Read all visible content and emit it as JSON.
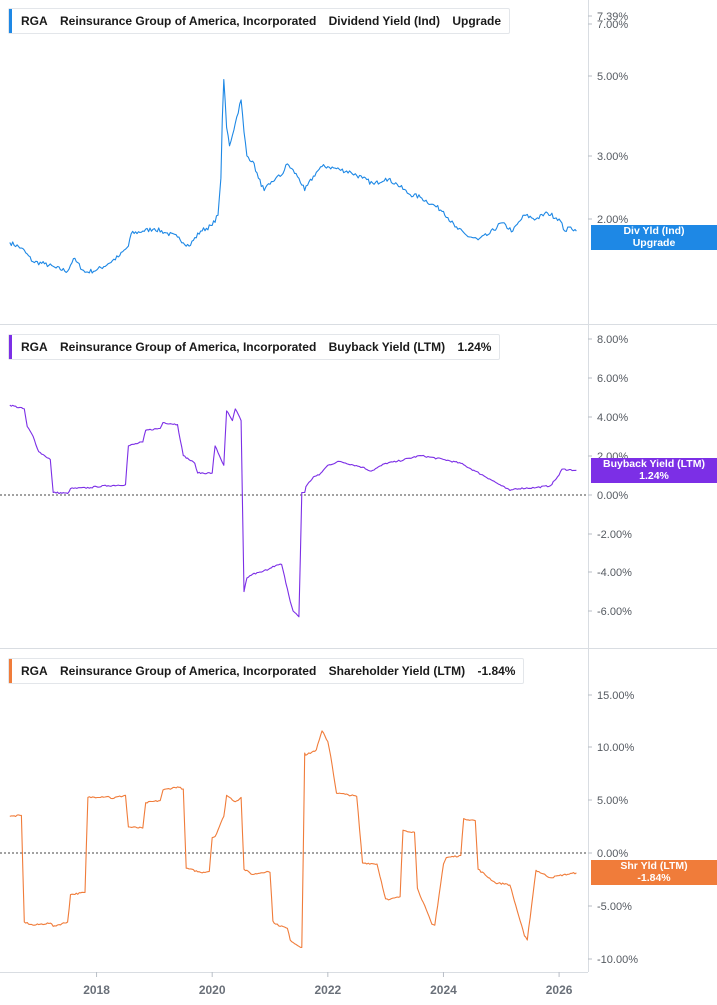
{
  "x_axis": {
    "ticks": [
      "2018",
      "2020",
      "2022",
      "2024",
      "2026"
    ]
  },
  "chart_data": [
    {
      "type": "line",
      "ticker": "RGA",
      "company": "Reinsurance Group of America, Incorporated",
      "metric": "Dividend Yield (Ind)",
      "current_value": "Upgrade",
      "tag_line1": "Div Yld (Ind)",
      "tag_line2": "Upgrade",
      "color": "#1e88e5",
      "scale": "log",
      "y_ticks": [
        "7.39%",
        "7.00%",
        "5.00%",
        "3.00%",
        "2.00%"
      ],
      "series": [
        {
          "x": [
            2016.5,
            2016.7,
            2016.9,
            2017.1,
            2017.3,
            2017.5,
            2017.6,
            2017.8,
            2018.0,
            2018.2,
            2018.4,
            2018.55,
            2018.6,
            2018.8,
            2019.0,
            2019.2,
            2019.4,
            2019.6,
            2019.8,
            2020.0,
            2020.1,
            2020.15,
            2020.2,
            2020.25,
            2020.3,
            2020.4,
            2020.5,
            2020.55,
            2020.6,
            2020.7,
            2020.8,
            2020.9,
            2021.0,
            2021.1,
            2021.2,
            2021.3,
            2021.5,
            2021.6,
            2021.8,
            2021.9,
            2022.0,
            2022.2,
            2022.4,
            2022.6,
            2022.8,
            2023.0,
            2023.2,
            2023.4,
            2023.6,
            2023.8,
            2024.0,
            2024.2,
            2024.4,
            2024.6,
            2024.8,
            2025.0,
            2025.2,
            2025.4,
            2025.6,
            2025.8,
            2026.0,
            2026.1,
            2026.2,
            2026.3
          ],
          "y": [
            1.72,
            1.66,
            1.52,
            1.5,
            1.46,
            1.43,
            1.55,
            1.42,
            1.44,
            1.5,
            1.58,
            1.68,
            1.82,
            1.85,
            1.88,
            1.83,
            1.78,
            1.68,
            1.85,
            1.92,
            2.05,
            2.6,
            4.9,
            3.6,
            3.2,
            3.7,
            4.3,
            3.5,
            3.0,
            2.9,
            2.6,
            2.4,
            2.5,
            2.6,
            2.65,
            2.85,
            2.6,
            2.4,
            2.7,
            2.8,
            2.8,
            2.75,
            2.7,
            2.6,
            2.5,
            2.6,
            2.5,
            2.35,
            2.3,
            2.2,
            2.1,
            1.9,
            1.8,
            1.75,
            1.82,
            1.95,
            1.85,
            2.05,
            2.0,
            2.08,
            2.0,
            1.85,
            1.9,
            1.85
          ]
        }
      ]
    },
    {
      "type": "line",
      "ticker": "RGA",
      "company": "Reinsurance Group of America, Incorporated",
      "metric": "Buyback Yield (LTM)",
      "current_value": "1.24%",
      "tag_line1": "Buyback Yield (LTM)",
      "tag_line2": "1.24%",
      "color": "#7c2fe6",
      "scale": "linear",
      "ylim": [
        -6.5,
        8.5
      ],
      "y_ticks": [
        "8.00%",
        "6.00%",
        "4.00%",
        "2.00%",
        "0.00%",
        "-2.00%",
        "-4.00%",
        "-6.00%"
      ],
      "zero_line": true,
      "series": [
        {
          "x": [
            2016.5,
            2016.75,
            2016.8,
            2016.9,
            2017.0,
            2017.1,
            2017.2,
            2017.25,
            2017.5,
            2017.55,
            2017.9,
            2018.0,
            2018.2,
            2018.5,
            2018.55,
            2018.8,
            2018.85,
            2019.1,
            2019.15,
            2019.4,
            2019.5,
            2019.7,
            2019.75,
            2020.0,
            2020.05,
            2020.2,
            2020.25,
            2020.35,
            2020.4,
            2020.5,
            2020.55,
            2020.6,
            2020.7,
            2020.85,
            2021.0,
            2021.05,
            2021.2,
            2021.35,
            2021.4,
            2021.5,
            2021.55,
            2021.6,
            2021.62,
            2021.75,
            2021.85,
            2022.0,
            2022.2,
            2022.6,
            2022.75,
            2023.0,
            2023.2,
            2023.6,
            2024.0,
            2024.3,
            2024.55,
            2024.8,
            2025.0,
            2025.15,
            2025.25,
            2025.6,
            2025.85,
            2026.0,
            2026.05,
            2026.3
          ],
          "y": [
            4.6,
            4.4,
            3.5,
            3.0,
            2.2,
            2.0,
            1.8,
            0.1,
            0.05,
            0.3,
            0.35,
            0.4,
            0.45,
            0.5,
            2.5,
            2.7,
            3.3,
            3.4,
            3.7,
            3.6,
            2.0,
            1.6,
            1.1,
            1.1,
            2.5,
            1.5,
            4.3,
            3.8,
            4.4,
            3.8,
            -5.0,
            -4.3,
            -4.1,
            -4.0,
            -3.8,
            -3.7,
            -3.6,
            -5.5,
            -6.0,
            -6.3,
            0.1,
            0.1,
            0.4,
            0.9,
            1.0,
            1.5,
            1.7,
            1.4,
            1.2,
            1.6,
            1.7,
            2.0,
            1.8,
            1.6,
            1.2,
            0.8,
            0.45,
            0.2,
            0.3,
            0.35,
            0.45,
            1.0,
            1.3,
            1.24
          ]
        }
      ]
    },
    {
      "type": "line",
      "ticker": "RGA",
      "company": "Reinsurance Group of America, Incorporated",
      "metric": "Shareholder Yield (LTM)",
      "current_value": "-1.84%",
      "tag_line1": "Shr Yld (LTM)",
      "tag_line2": "-1.84%",
      "color": "#f07c3a",
      "scale": "linear",
      "ylim": [
        -11,
        17
      ],
      "y_ticks": [
        "15.00%",
        "10.00%",
        "5.00%",
        "0.00%",
        "-5.00%",
        "-10.00%"
      ],
      "zero_line": true,
      "series": [
        {
          "x": [
            2016.5,
            2016.7,
            2016.75,
            2016.9,
            2017.2,
            2017.25,
            2017.5,
            2017.55,
            2017.8,
            2017.85,
            2018.2,
            2018.25,
            2018.5,
            2018.55,
            2018.8,
            2018.85,
            2019.1,
            2019.15,
            2019.4,
            2019.5,
            2019.55,
            2019.8,
            2019.95,
            2020.0,
            2020.05,
            2020.2,
            2020.25,
            2020.4,
            2020.5,
            2020.55,
            2020.7,
            2020.95,
            2021.0,
            2021.05,
            2021.1,
            2021.3,
            2021.35,
            2021.5,
            2021.55,
            2021.6,
            2021.62,
            2021.8,
            2021.9,
            2022.0,
            2022.05,
            2022.15,
            2022.3,
            2022.5,
            2022.6,
            2022.85,
            2023.0,
            2023.05,
            2023.25,
            2023.3,
            2023.5,
            2023.55,
            2023.8,
            2023.85,
            2024.0,
            2024.05,
            2024.3,
            2024.35,
            2024.55,
            2024.6,
            2024.9,
            2025.1,
            2025.15,
            2025.4,
            2025.45,
            2025.6,
            2025.85,
            2026.0,
            2026.3
          ],
          "y": [
            3.5,
            3.6,
            -6.5,
            -6.8,
            -6.6,
            -6.9,
            -6.5,
            -3.9,
            -3.7,
            5.3,
            5.4,
            5.2,
            5.5,
            2.5,
            2.4,
            4.8,
            5.0,
            6.0,
            6.3,
            6.1,
            -1.4,
            -1.8,
            -1.7,
            1.5,
            1.6,
            3.5,
            5.5,
            4.9,
            5.3,
            -1.5,
            -2.0,
            -1.7,
            -1.8,
            -6.4,
            -6.7,
            -7.1,
            -8.2,
            -8.8,
            -8.9,
            9.5,
            9.3,
            9.8,
            11.6,
            10.6,
            9.2,
            5.7,
            5.6,
            5.4,
            -0.9,
            -1.0,
            -4.3,
            -4.4,
            -4.1,
            2.2,
            2.0,
            -3.3,
            -6.7,
            -6.8,
            -1.0,
            -0.4,
            -0.2,
            3.3,
            3.1,
            -1.5,
            -2.8,
            -2.9,
            -3.0,
            -7.8,
            -8.2,
            -1.6,
            -2.3,
            -2.1,
            -1.84
          ]
        }
      ]
    }
  ]
}
